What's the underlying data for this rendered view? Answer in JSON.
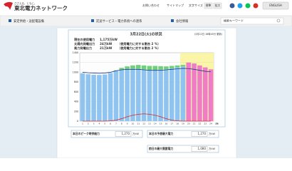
{
  "header": {
    "tagline": "ささえる。ともに。",
    "logo": "東北電力ネットワーク",
    "links": [
      "お問い合わせ",
      "サイトマップ"
    ],
    "font_size_label": "文字サイズ",
    "font_sizes": [
      "標準",
      "拡大"
    ],
    "english": "ENGLISH"
  },
  "nav": {
    "items": [
      "安定供給・送配電設備",
      "託送サービス・電力系統への連系",
      "会社情報"
    ],
    "search_placeholder": "検索キーワード"
  },
  "status": {
    "title": "3月22日(火)の状況",
    "updated": "(3月22日 18時45分 更新)",
    "lines": [
      {
        "label": "現在の使用電力",
        "value": "1,175万kW",
        "note": ""
      },
      {
        "label": "太陽光発電出力",
        "value": "24万kW",
        "note": "（使用電力に対する割合 2 %）"
      },
      {
        "label": "風力発電出力",
        "value": "21万kW",
        "note": "（使用電力に対する割合 2 %）"
      }
    ]
  },
  "chart_data": {
    "type": "bar",
    "categories": [
      "1",
      "2",
      "3",
      "4",
      "5",
      "6",
      "7",
      "8",
      "9",
      "10",
      "11",
      "12",
      "13",
      "14",
      "15",
      "16",
      "17",
      "18",
      "19",
      "20",
      "21",
      "22",
      "23",
      "24"
    ],
    "ylim": [
      0,
      1400
    ],
    "yticks": [
      0,
      200,
      400,
      600,
      800,
      1000,
      1200,
      1400
    ],
    "grid": true,
    "x_unit": "(時)",
    "series": [
      {
        "kind": "bar",
        "color": "#8fc3f0",
        "values": [
          980,
          960,
          950,
          945,
          955,
          985,
          1030,
          1050,
          1060,
          1070,
          1070,
          1060,
          1050,
          1050,
          1055,
          1060,
          1080,
          1100,
          1120,
          null,
          null,
          null,
          null,
          null
        ]
      },
      {
        "kind": "bar",
        "color": "#6fd07a",
        "values": [
          0,
          0,
          0,
          0,
          0,
          0,
          10,
          40,
          60,
          70,
          80,
          80,
          80,
          80,
          70,
          60,
          50,
          40,
          30,
          null,
          null,
          null,
          null,
          null
        ]
      },
      {
        "kind": "bar",
        "color": "#f07cc8",
        "values": [
          null,
          null,
          null,
          null,
          null,
          null,
          null,
          null,
          null,
          null,
          null,
          null,
          null,
          null,
          null,
          null,
          null,
          null,
          null,
          1200,
          1180,
          1140,
          1100,
          1060
        ]
      },
      {
        "kind": "line",
        "color": "#1d3c8c",
        "values": [
          1000,
          990,
          985,
          980,
          985,
          1000,
          1030,
          1050,
          1060,
          1060,
          1060,
          1050,
          1040,
          1040,
          1040,
          1050,
          1060,
          1070,
          1080,
          1075,
          1060,
          1040,
          1020,
          1010
        ]
      },
      {
        "kind": "line",
        "color": "#d62a2a",
        "values": [
          0,
          0,
          0,
          0,
          0,
          5,
          20,
          50,
          90,
          120,
          140,
          150,
          140,
          120,
          90,
          50,
          20,
          5,
          0,
          0,
          0,
          0,
          0,
          0
        ]
      }
    ],
    "forecast_shade": "#fbf5a8"
  },
  "summary": {
    "peak_supply": {
      "label": "本日のピーク時供給力",
      "value": "1,270",
      "unit": "万kW"
    },
    "forecast_max": {
      "label": "本日の予想最大電力",
      "value": "1,270",
      "unit": "万kW"
    },
    "prev_max": {
      "label": "前日の最大需要電力",
      "value": "1,080",
      "unit": "万kW"
    }
  }
}
